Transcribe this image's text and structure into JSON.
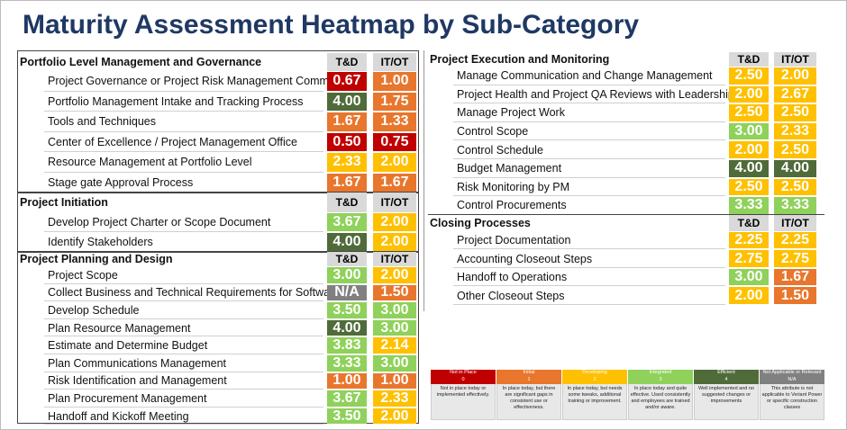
{
  "title": "Maturity Assessment Heatmap by Sub-Category",
  "panels": [
    {
      "sections": [
        {
          "name": "Portfolio Level Management and Governance",
          "columns": [
            "T&D",
            "IT/OT"
          ],
          "rows": [
            {
              "label": "Project Governance or Project Risk Management Committee",
              "values": [
                "0.67",
                "1.00"
              ]
            },
            {
              "label": "Portfolio Management Intake and Tracking Process",
              "values": [
                "4.00",
                "1.75"
              ]
            },
            {
              "label": "Tools and Techniques",
              "values": [
                "1.67",
                "1.33"
              ]
            },
            {
              "label": "Center of Excellence / Project Management Office",
              "values": [
                "0.50",
                "0.75"
              ]
            },
            {
              "label": "Resource Management at Portfolio Level",
              "values": [
                "2.33",
                "2.00"
              ]
            },
            {
              "label": "Stage gate Approval Process",
              "values": [
                "1.67",
                "1.67"
              ]
            }
          ]
        },
        {
          "name": "Project Initiation",
          "columns": [
            "T&D",
            "IT/OT"
          ],
          "rows": [
            {
              "label": "Develop Project Charter or Scope Document",
              "values": [
                "3.67",
                "2.00"
              ]
            },
            {
              "label": "Identify Stakeholders",
              "values": [
                "4.00",
                "2.00"
              ]
            }
          ]
        },
        {
          "name": "Project Planning and Design",
          "columns": [
            "T&D",
            "IT/OT"
          ],
          "rows": [
            {
              "label": "Project Scope",
              "values": [
                "3.00",
                "2.00"
              ]
            },
            {
              "label": "Collect Business and Technical Requirements for Software",
              "values": [
                "N/A",
                "1.50"
              ]
            },
            {
              "label": "Develop Schedule",
              "values": [
                "3.50",
                "3.00"
              ]
            },
            {
              "label": "Plan Resource Management",
              "values": [
                "4.00",
                "3.00"
              ]
            },
            {
              "label": "Estimate and Determine Budget",
              "values": [
                "3.83",
                "2.14"
              ]
            },
            {
              "label": "Plan Communications Management",
              "values": [
                "3.33",
                "3.00"
              ]
            },
            {
              "label": "Risk Identification and Management",
              "values": [
                "1.00",
                "1.00"
              ]
            },
            {
              "label": "Plan Procurement Management",
              "values": [
                "3.67",
                "2.33"
              ]
            },
            {
              "label": "Handoff and Kickoff Meeting",
              "values": [
                "3.50",
                "2.00"
              ]
            }
          ]
        }
      ]
    },
    {
      "sections": [
        {
          "name": "Project Execution and Monitoring",
          "columns": [
            "T&D",
            "IT/OT"
          ],
          "rows": [
            {
              "label": "Manage Communication and Change Management",
              "values": [
                "2.50",
                "2.00"
              ]
            },
            {
              "label": "Project Health and Project QA Reviews with Leadership",
              "values": [
                "2.00",
                "2.67"
              ]
            },
            {
              "label": "Manage Project Work",
              "values": [
                "2.50",
                "2.50"
              ]
            },
            {
              "label": "Control Scope",
              "values": [
                "3.00",
                "2.33"
              ]
            },
            {
              "label": "Control Schedule",
              "values": [
                "2.00",
                "2.50"
              ]
            },
            {
              "label": "Budget Management",
              "values": [
                "4.00",
                "4.00"
              ]
            },
            {
              "label": "Risk Monitoring by PM",
              "values": [
                "2.50",
                "2.50"
              ]
            },
            {
              "label": "Control Procurements",
              "values": [
                "3.33",
                "3.33"
              ]
            }
          ]
        },
        {
          "name": "Closing Processes",
          "columns": [
            "T&D",
            "IT/OT"
          ],
          "rows": [
            {
              "label": "Project Documentation",
              "values": [
                "2.25",
                "2.25"
              ]
            },
            {
              "label": "Accounting Closeout Steps",
              "values": [
                "2.75",
                "2.75"
              ]
            },
            {
              "label": "Handoff to Operations",
              "values": [
                "3.00",
                "1.67"
              ]
            },
            {
              "label": "Other Closeout Steps",
              "values": [
                "2.00",
                "1.50"
              ]
            }
          ]
        }
      ]
    }
  ],
  "legend": [
    {
      "name": "Not in Place",
      "level": "0",
      "color": "#c00000",
      "description": "Not in place today or implemented effectively."
    },
    {
      "name": "Initial",
      "level": "1",
      "color": "#e8762d",
      "description": "In place today, but there are significant gaps in consistent use or effectiveness."
    },
    {
      "name": "Developing",
      "level": "2",
      "color": "#ffc000",
      "description": "In place today, but needs some tweaks, additional training or improvement."
    },
    {
      "name": "Integrated",
      "level": "3",
      "color": "#8fd15b",
      "description": "In place today and quite effective. Used consistently and employees are trained and/or aware."
    },
    {
      "name": "Efficient",
      "level": "4",
      "color": "#4f6b3a",
      "description": "Well implemented and no suggested changes or improvements"
    },
    {
      "name": "Not Applicable or Relevant",
      "level": "N/A",
      "color": "#808080",
      "description": "This attribute is not applicable to Veriant Power or specific construction classes"
    }
  ]
}
